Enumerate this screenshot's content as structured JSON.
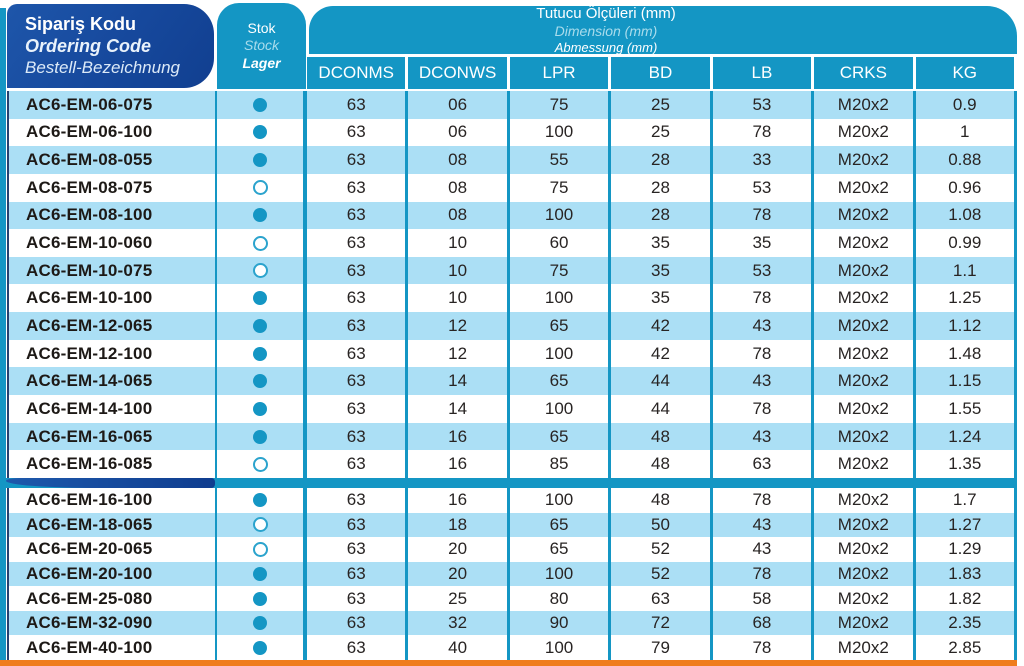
{
  "header": {
    "ordering_code": {
      "line1": "Sipariş Kodu",
      "line2": "Ordering Code",
      "line3": "Bestell-Bezeichnung"
    },
    "stock": {
      "line1": "Stok",
      "line2": "Stock",
      "line3": "Lager"
    },
    "dimensions": {
      "line1": "Tutucu Ölçüleri (mm)",
      "line2": "Dimension (mm)",
      "line3": "Abmessung (mm)"
    },
    "columns": [
      "DCONMS",
      "DCONWS",
      "LPR",
      "BD",
      "LB",
      "CRKS",
      "KG"
    ]
  },
  "colors": {
    "teal": "#1496C4",
    "dark_blue": "#16489C",
    "row_light_blue": "#ABDFF5",
    "row_white": "#FFFFFF",
    "orange": "#EF7D1E"
  },
  "stock_icons": {
    "filled": "stock-filled-dot",
    "hollow": "stock-hollow-dot"
  },
  "sections": [
    {
      "rows": [
        {
          "code": "AC6-EM-06-075",
          "stock": "filled",
          "values": [
            "63",
            "06",
            "75",
            "25",
            "53",
            "M20x2",
            "0.9"
          ]
        },
        {
          "code": "AC6-EM-06-100",
          "stock": "filled",
          "values": [
            "63",
            "06",
            "100",
            "25",
            "78",
            "M20x2",
            "1"
          ]
        },
        {
          "code": "AC6-EM-08-055",
          "stock": "filled",
          "values": [
            "63",
            "08",
            "55",
            "28",
            "33",
            "M20x2",
            "0.88"
          ]
        },
        {
          "code": "AC6-EM-08-075",
          "stock": "hollow",
          "values": [
            "63",
            "08",
            "75",
            "28",
            "53",
            "M20x2",
            "0.96"
          ]
        },
        {
          "code": "AC6-EM-08-100",
          "stock": "filled",
          "values": [
            "63",
            "08",
            "100",
            "28",
            "78",
            "M20x2",
            "1.08"
          ]
        },
        {
          "code": "AC6-EM-10-060",
          "stock": "hollow",
          "values": [
            "63",
            "10",
            "60",
            "35",
            "35",
            "M20x2",
            "0.99"
          ]
        },
        {
          "code": "AC6-EM-10-075",
          "stock": "hollow",
          "values": [
            "63",
            "10",
            "75",
            "35",
            "53",
            "M20x2",
            "1.1"
          ]
        },
        {
          "code": "AC6-EM-10-100",
          "stock": "filled",
          "values": [
            "63",
            "10",
            "100",
            "35",
            "78",
            "M20x2",
            "1.25"
          ]
        },
        {
          "code": "AC6-EM-12-065",
          "stock": "filled",
          "values": [
            "63",
            "12",
            "65",
            "42",
            "43",
            "M20x2",
            "1.12"
          ]
        },
        {
          "code": "AC6-EM-12-100",
          "stock": "filled",
          "values": [
            "63",
            "12",
            "100",
            "42",
            "78",
            "M20x2",
            "1.48"
          ]
        },
        {
          "code": "AC6-EM-14-065",
          "stock": "filled",
          "values": [
            "63",
            "14",
            "65",
            "44",
            "43",
            "M20x2",
            "1.15"
          ]
        },
        {
          "code": "AC6-EM-14-100",
          "stock": "filled",
          "values": [
            "63",
            "14",
            "100",
            "44",
            "78",
            "M20x2",
            "1.55"
          ]
        },
        {
          "code": "AC6-EM-16-065",
          "stock": "filled",
          "values": [
            "63",
            "16",
            "65",
            "48",
            "43",
            "M20x2",
            "1.24"
          ]
        },
        {
          "code": "AC6-EM-16-085",
          "stock": "hollow",
          "values": [
            "63",
            "16",
            "85",
            "48",
            "63",
            "M20x2",
            "1.35"
          ]
        }
      ]
    },
    {
      "rows": [
        {
          "code": "AC6-EM-16-100",
          "stock": "filled",
          "values": [
            "63",
            "16",
            "100",
            "48",
            "78",
            "M20x2",
            "1.7"
          ]
        },
        {
          "code": "AC6-EM-18-065",
          "stock": "hollow",
          "values": [
            "63",
            "18",
            "65",
            "50",
            "43",
            "M20x2",
            "1.27"
          ]
        },
        {
          "code": "AC6-EM-20-065",
          "stock": "hollow",
          "values": [
            "63",
            "20",
            "65",
            "52",
            "43",
            "M20x2",
            "1.29"
          ]
        },
        {
          "code": "AC6-EM-20-100",
          "stock": "filled",
          "values": [
            "63",
            "20",
            "100",
            "52",
            "78",
            "M20x2",
            "1.83"
          ]
        },
        {
          "code": "AC6-EM-25-080",
          "stock": "filled",
          "values": [
            "63",
            "25",
            "80",
            "63",
            "58",
            "M20x2",
            "1.82"
          ]
        },
        {
          "code": "AC6-EM-32-090",
          "stock": "filled",
          "values": [
            "63",
            "32",
            "90",
            "72",
            "68",
            "M20x2",
            "2.35"
          ]
        },
        {
          "code": "AC6-EM-40-100",
          "stock": "filled",
          "values": [
            "63",
            "40",
            "100",
            "79",
            "78",
            "M20x2",
            "2.85"
          ]
        }
      ]
    }
  ]
}
